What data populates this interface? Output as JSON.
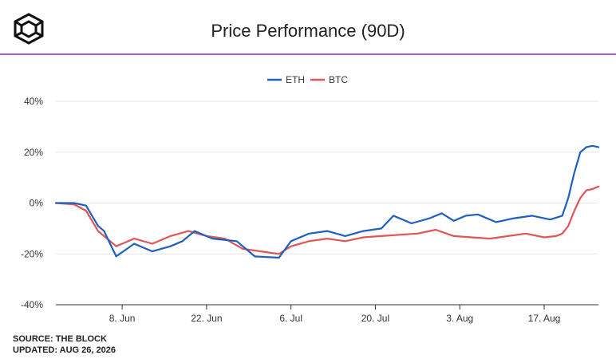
{
  "header": {
    "title": "Price Performance (90D)",
    "logo_icon": "the-block-cube-icon"
  },
  "footer": {
    "source": "SOURCE: THE BLOCK",
    "updated": "UPDATED: AUG 26, 2026"
  },
  "colors": {
    "accent_rule": "#b45ad6",
    "eth": "#1f5fbf",
    "btc": "#e05555"
  },
  "chart_data": {
    "type": "line",
    "title": "Price Performance (90D)",
    "xlabel": "",
    "ylabel": "",
    "y_unit": "%",
    "ylim": [
      -40,
      40
    ],
    "y_ticks": [
      -40,
      -20,
      0,
      20,
      40
    ],
    "y_tick_labels": [
      "-40%",
      "-20%",
      "0%",
      "20%",
      "40%"
    ],
    "x_range": [
      "2026-05-28",
      "2026-08-26"
    ],
    "x_ticks": [
      "2026-06-08",
      "2026-06-22",
      "2026-07-06",
      "2026-07-20",
      "2026-08-03",
      "2026-08-17"
    ],
    "x_tick_labels": [
      "8. Jun",
      "22. Jun",
      "6. Jul",
      "20. Jul",
      "3. Aug",
      "17. Aug"
    ],
    "grid": "horizontal",
    "legend_position": "top-center",
    "series": [
      {
        "name": "ETH",
        "color": "#1f5fbf",
        "points": [
          [
            "2026-05-28",
            0
          ],
          [
            "2026-05-31",
            0
          ],
          [
            "2026-06-02",
            -1
          ],
          [
            "2026-06-04",
            -9
          ],
          [
            "2026-06-05",
            -11
          ],
          [
            "2026-06-07",
            -21
          ],
          [
            "2026-06-10",
            -16
          ],
          [
            "2026-06-13",
            -19
          ],
          [
            "2026-06-16",
            -17
          ],
          [
            "2026-06-18",
            -15
          ],
          [
            "2026-06-20",
            -11
          ],
          [
            "2026-06-23",
            -14
          ],
          [
            "2026-06-27",
            -15
          ],
          [
            "2026-06-30",
            -21
          ],
          [
            "2026-07-04",
            -21.5
          ],
          [
            "2026-07-06",
            -15
          ],
          [
            "2026-07-09",
            -12
          ],
          [
            "2026-07-12",
            -11
          ],
          [
            "2026-07-15",
            -13
          ],
          [
            "2026-07-18",
            -11
          ],
          [
            "2026-07-21",
            -10
          ],
          [
            "2026-07-23",
            -5
          ],
          [
            "2026-07-26",
            -8
          ],
          [
            "2026-07-29",
            -6
          ],
          [
            "2026-07-31",
            -4
          ],
          [
            "2026-08-02",
            -7
          ],
          [
            "2026-08-04",
            -5
          ],
          [
            "2026-08-06",
            -4.5
          ],
          [
            "2026-08-09",
            -7.5
          ],
          [
            "2026-08-12",
            -6
          ],
          [
            "2026-08-15",
            -5
          ],
          [
            "2026-08-18",
            -6.5
          ],
          [
            "2026-08-20",
            -5
          ],
          [
            "2026-08-21",
            2
          ],
          [
            "2026-08-22",
            12
          ],
          [
            "2026-08-23",
            20
          ],
          [
            "2026-08-24",
            22
          ],
          [
            "2026-08-25",
            22.5
          ],
          [
            "2026-08-26",
            22
          ]
        ]
      },
      {
        "name": "BTC",
        "color": "#e05555",
        "points": [
          [
            "2026-05-28",
            0
          ],
          [
            "2026-05-31",
            -0.5
          ],
          [
            "2026-06-02",
            -3
          ],
          [
            "2026-06-04",
            -11
          ],
          [
            "2026-06-07",
            -17
          ],
          [
            "2026-06-10",
            -14
          ],
          [
            "2026-06-13",
            -16
          ],
          [
            "2026-06-16",
            -13
          ],
          [
            "2026-06-19",
            -11
          ],
          [
            "2026-06-22",
            -13
          ],
          [
            "2026-06-25",
            -14
          ],
          [
            "2026-06-28",
            -18
          ],
          [
            "2026-07-01",
            -19
          ],
          [
            "2026-07-04",
            -20
          ],
          [
            "2026-07-06",
            -17
          ],
          [
            "2026-07-09",
            -15
          ],
          [
            "2026-07-12",
            -14
          ],
          [
            "2026-07-15",
            -15
          ],
          [
            "2026-07-18",
            -13.5
          ],
          [
            "2026-07-21",
            -13
          ],
          [
            "2026-07-24",
            -12.5
          ],
          [
            "2026-07-27",
            -12
          ],
          [
            "2026-07-30",
            -10.5
          ],
          [
            "2026-08-02",
            -13
          ],
          [
            "2026-08-05",
            -13.5
          ],
          [
            "2026-08-08",
            -14
          ],
          [
            "2026-08-11",
            -13
          ],
          [
            "2026-08-14",
            -12
          ],
          [
            "2026-08-17",
            -13.5
          ],
          [
            "2026-08-19",
            -13
          ],
          [
            "2026-08-20",
            -12
          ],
          [
            "2026-08-21",
            -9
          ],
          [
            "2026-08-22",
            -3
          ],
          [
            "2026-08-23",
            2
          ],
          [
            "2026-08-24",
            5
          ],
          [
            "2026-08-25",
            5.5
          ],
          [
            "2026-08-26",
            6.5
          ]
        ]
      }
    ]
  }
}
